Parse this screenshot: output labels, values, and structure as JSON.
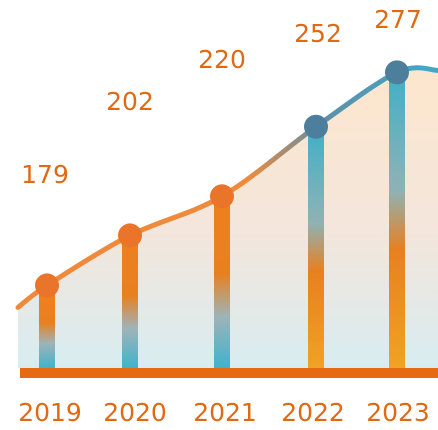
{
  "chart_data": {
    "type": "bar",
    "categories": [
      "2019",
      "2020",
      "2021",
      "2022",
      "2023"
    ],
    "values": [
      179,
      202,
      220,
      252,
      277
    ],
    "title": "",
    "xlabel": "",
    "ylabel": "",
    "grid": false,
    "legend": "none",
    "trend_line": true
  },
  "colors": {
    "orange": "#e8781e",
    "teal": "#4aaec4",
    "label_orange": "#e06a14",
    "marker_orange": "#e9742a",
    "marker_steel": "#4d7f9c",
    "baseline": "#e66a12"
  }
}
